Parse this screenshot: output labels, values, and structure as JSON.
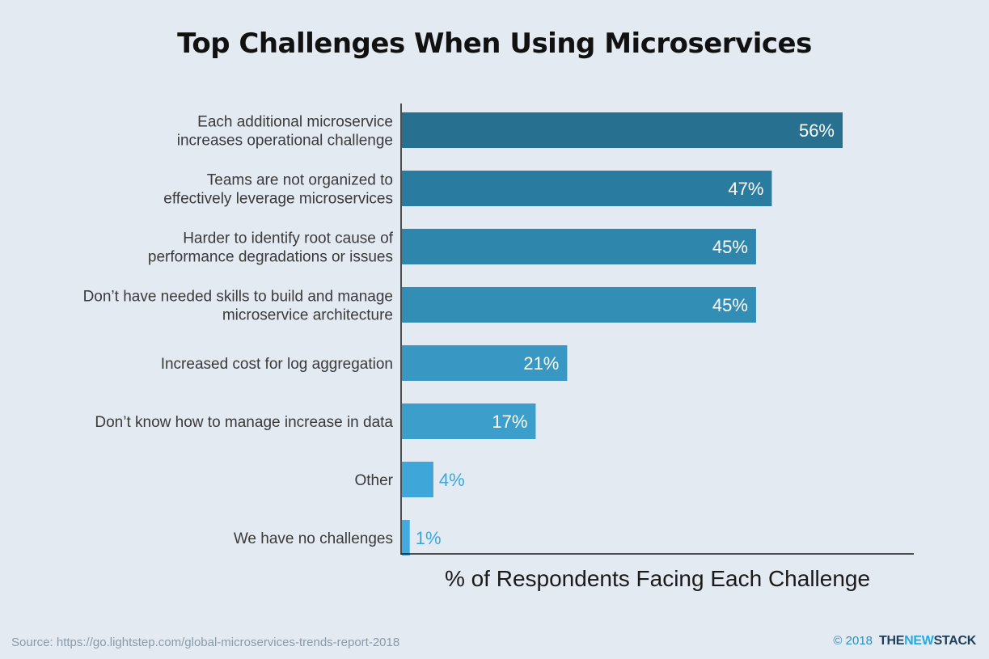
{
  "title": "Top Challenges When Using Microservices",
  "chart_data": {
    "type": "bar",
    "orientation": "horizontal",
    "categories": [
      [
        "Each additional microservice",
        "increases operational challenge"
      ],
      [
        "Teams are not organized to",
        "effectively leverage microservices"
      ],
      [
        "Harder to identify root cause of",
        "performance degradations or issues"
      ],
      [
        "Don’t have needed skills to build and manage",
        "microservice architecture"
      ],
      [
        "Increased cost for log aggregation"
      ],
      [
        "Don’t know how to manage increase in data"
      ],
      [
        "Other"
      ],
      [
        "We have no challenges"
      ]
    ],
    "values": [
      56,
      47,
      45,
      45,
      21,
      17,
      4,
      1
    ],
    "value_labels": [
      "56%",
      "47%",
      "45%",
      "45%",
      "21%",
      "17%",
      "4%",
      "1%"
    ],
    "bar_colors": [
      "#27708f",
      "#2a7ba0",
      "#2e86ad",
      "#338eb6",
      "#3898c3",
      "#3b9ecb",
      "#3ea6d9",
      "#40abe0"
    ],
    "label_inside_color": "#ffffff",
    "label_outside_color": "#3ea6d9",
    "xlabel": "% of Respondents Facing Each Challenge",
    "ylabel": "",
    "xlim": [
      0,
      60
    ]
  },
  "footer": {
    "source": "Source: https://go.lightstep.com/global-microservices-trends-report-2018",
    "copyright": "© 2018",
    "brand_part1": "THE",
    "brand_part2": "NEW",
    "brand_part3": "STACK"
  }
}
